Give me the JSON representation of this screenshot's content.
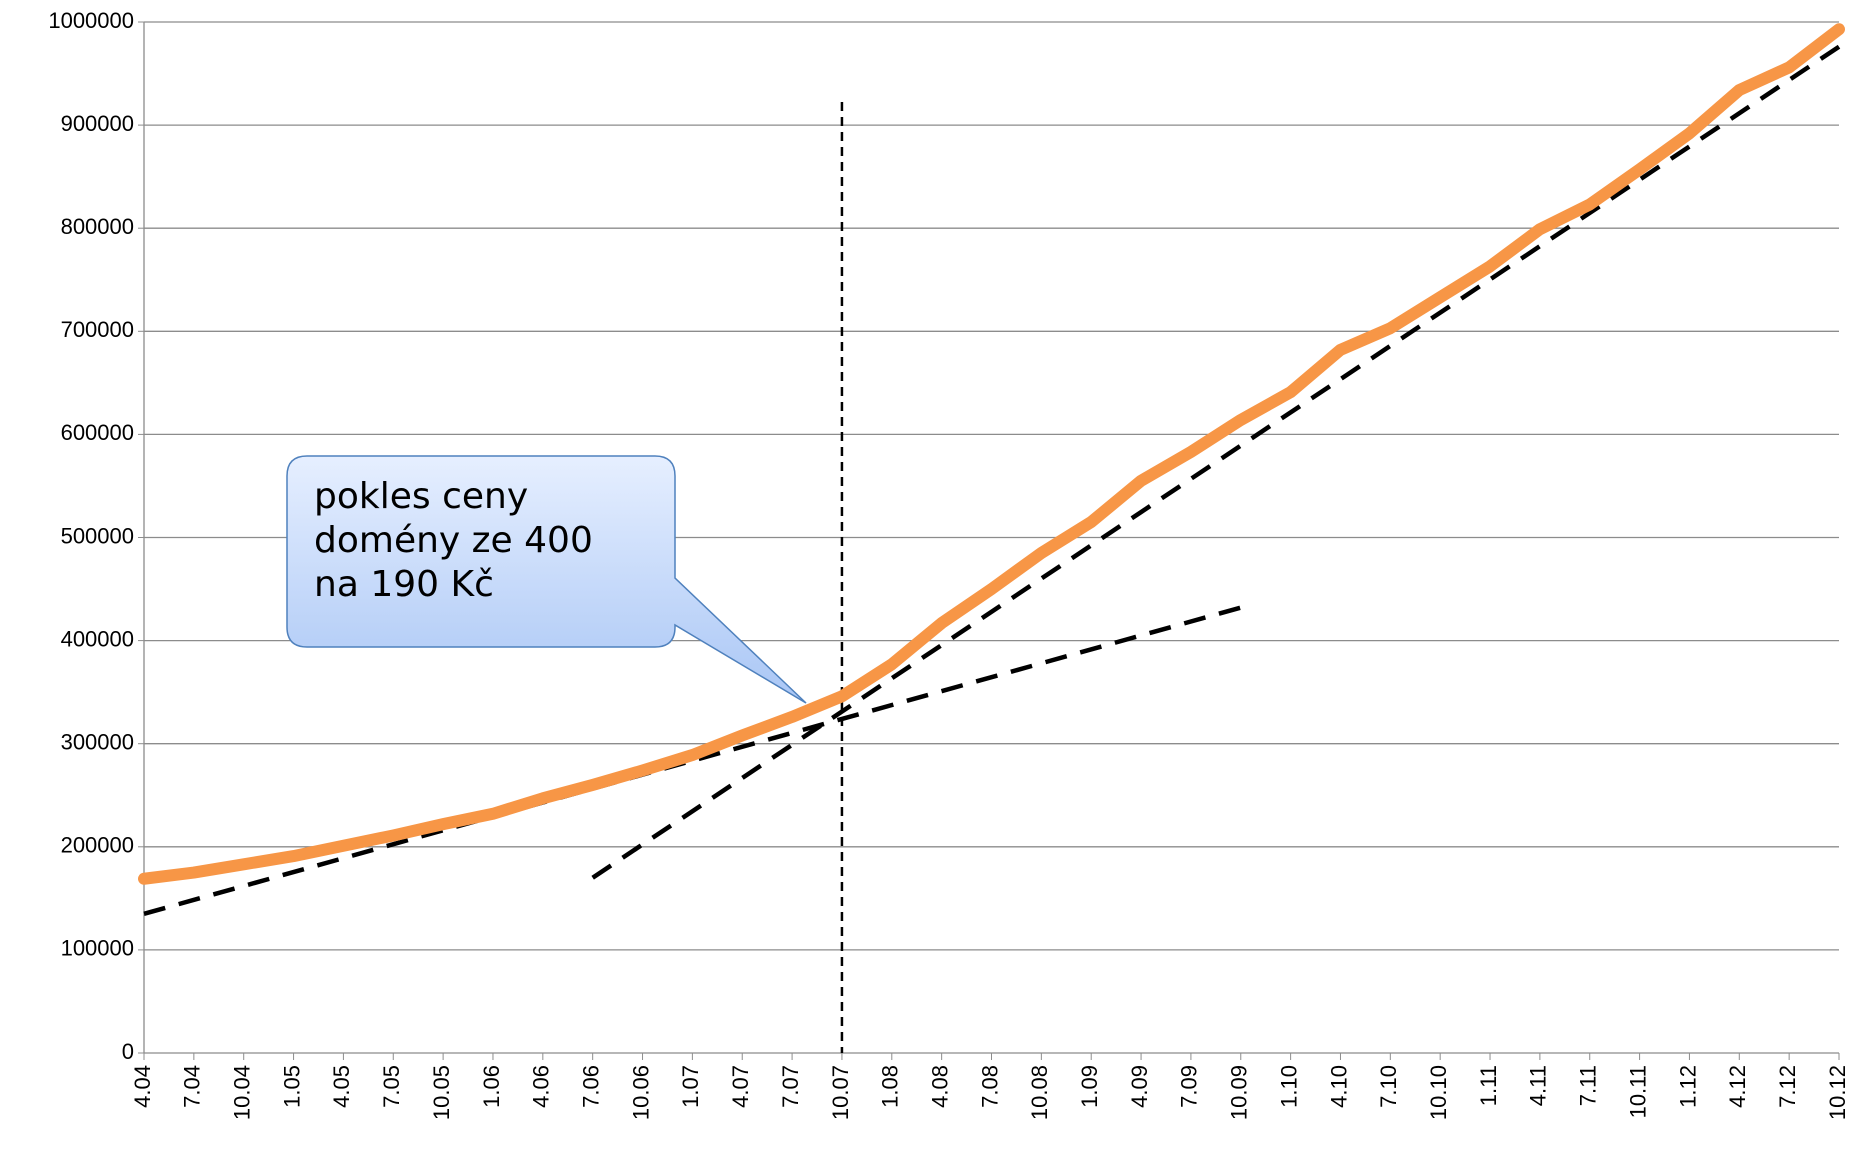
{
  "chart_data": {
    "type": "line",
    "categories": [
      "4.04",
      "7.04",
      "10.04",
      "1.05",
      "4.05",
      "7.05",
      "10.05",
      "1.06",
      "4.06",
      "7.06",
      "10.06",
      "1.07",
      "4.07",
      "7.07",
      "10.07",
      "1.08",
      "4.08",
      "7.08",
      "10.08",
      "1.09",
      "4.09",
      "7.09",
      "10.09",
      "1.10",
      "4.10",
      "7.10",
      "10.10",
      "1.11",
      "4.11",
      "7.11",
      "10.11",
      "1.12",
      "4.12",
      "7.12",
      "10.12"
    ],
    "values": [
      169000,
      175000,
      183000,
      191000,
      201000,
      211000,
      222000,
      232000,
      247000,
      260000,
      274000,
      289000,
      308000,
      326000,
      346000,
      377000,
      417000,
      450000,
      485000,
      515000,
      555000,
      583000,
      614000,
      641000,
      682000,
      703000,
      733000,
      763000,
      799000,
      823000,
      857000,
      892000,
      934000,
      956000,
      993000
    ],
    "color": "#f79646",
    "ylim": [
      0,
      1000000
    ],
    "yticks": [
      0,
      100000,
      200000,
      300000,
      400000,
      500000,
      600000,
      700000,
      800000,
      900000,
      1000000
    ],
    "grid": true,
    "trend_lines": [
      {
        "x": [
          "4.04",
          "10.09"
        ],
        "values": [
          135000,
          432000
        ]
      },
      {
        "x": [
          "7.06",
          "10.12"
        ],
        "values": [
          170000,
          976000
        ]
      }
    ],
    "marker_x": "10.07",
    "annotation": "pokles ceny domény ze 400 na 190 Kč"
  }
}
